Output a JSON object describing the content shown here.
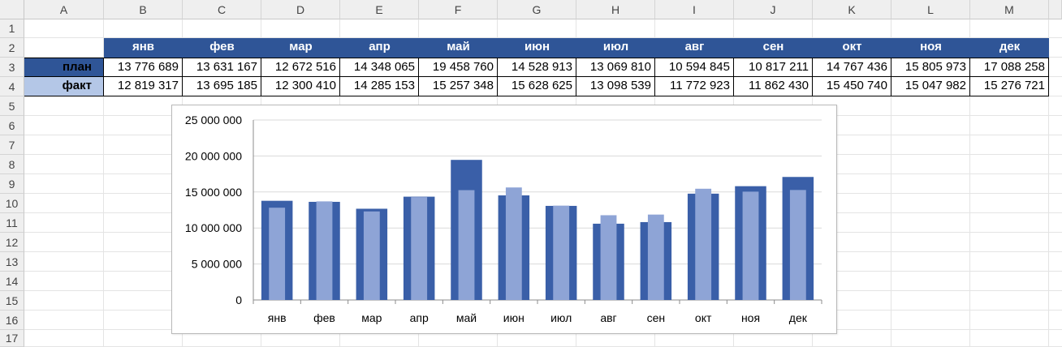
{
  "columns": [
    "A",
    "B",
    "C",
    "D",
    "E",
    "F",
    "G",
    "H",
    "I",
    "J",
    "K",
    "L",
    "M"
  ],
  "rows": [
    "1",
    "2",
    "3",
    "4",
    "5",
    "6",
    "7",
    "8",
    "9",
    "10",
    "11",
    "12",
    "13",
    "14",
    "15",
    "16",
    "17"
  ],
  "table": {
    "months": [
      "янв",
      "фев",
      "мар",
      "апр",
      "май",
      "июн",
      "июл",
      "авг",
      "сен",
      "окт",
      "ноя",
      "дек"
    ],
    "plan_label": "план",
    "fact_label": "факт",
    "plan": [
      "13 776 689",
      "13 631 167",
      "12 672 516",
      "14 348 065",
      "19 458 760",
      "14 528 913",
      "13 069 810",
      "10 594 845",
      "10 817 211",
      "14 767 436",
      "15 805 973",
      "17 088 258"
    ],
    "fact": [
      "12 819 317",
      "13 695 185",
      "12 300 410",
      "14 285 153",
      "15 257 348",
      "15 628 625",
      "13 098 539",
      "11 772 923",
      "11 862 430",
      "15 450 740",
      "15 047 982",
      "15 276 721"
    ]
  },
  "colors": {
    "header_fill": "#2f5597",
    "plan_label_fill": "#2f5597",
    "fact_label_fill": "#b4c7e7",
    "plan_bar": "#3a5fa8",
    "fact_bar": "#8ea4d6"
  },
  "chart_data": {
    "type": "bar",
    "categories": [
      "янв",
      "фев",
      "мар",
      "апр",
      "май",
      "июн",
      "июл",
      "авг",
      "сен",
      "окт",
      "ноя",
      "дек"
    ],
    "series": [
      {
        "values": [
          13776689,
          13631167,
          12672516,
          14348065,
          19458760,
          14528913,
          13069810,
          10594845,
          10817211,
          14767436,
          15805973,
          17088258
        ]
      },
      {
        "values": [
          12819317,
          13695185,
          12300410,
          14285153,
          15257348,
          15628625,
          13098539,
          11772923,
          11862430,
          15450740,
          15047982,
          15276721
        ]
      }
    ],
    "ylim": [
      0,
      25000000
    ],
    "yticks": [
      "0",
      "5 000 000",
      "10 000 000",
      "15 000 000",
      "20 000 000",
      "25 000 000"
    ],
    "title": "",
    "xlabel": "",
    "ylabel": "",
    "grid": true,
    "legend": "none",
    "layout": "overlapped"
  }
}
